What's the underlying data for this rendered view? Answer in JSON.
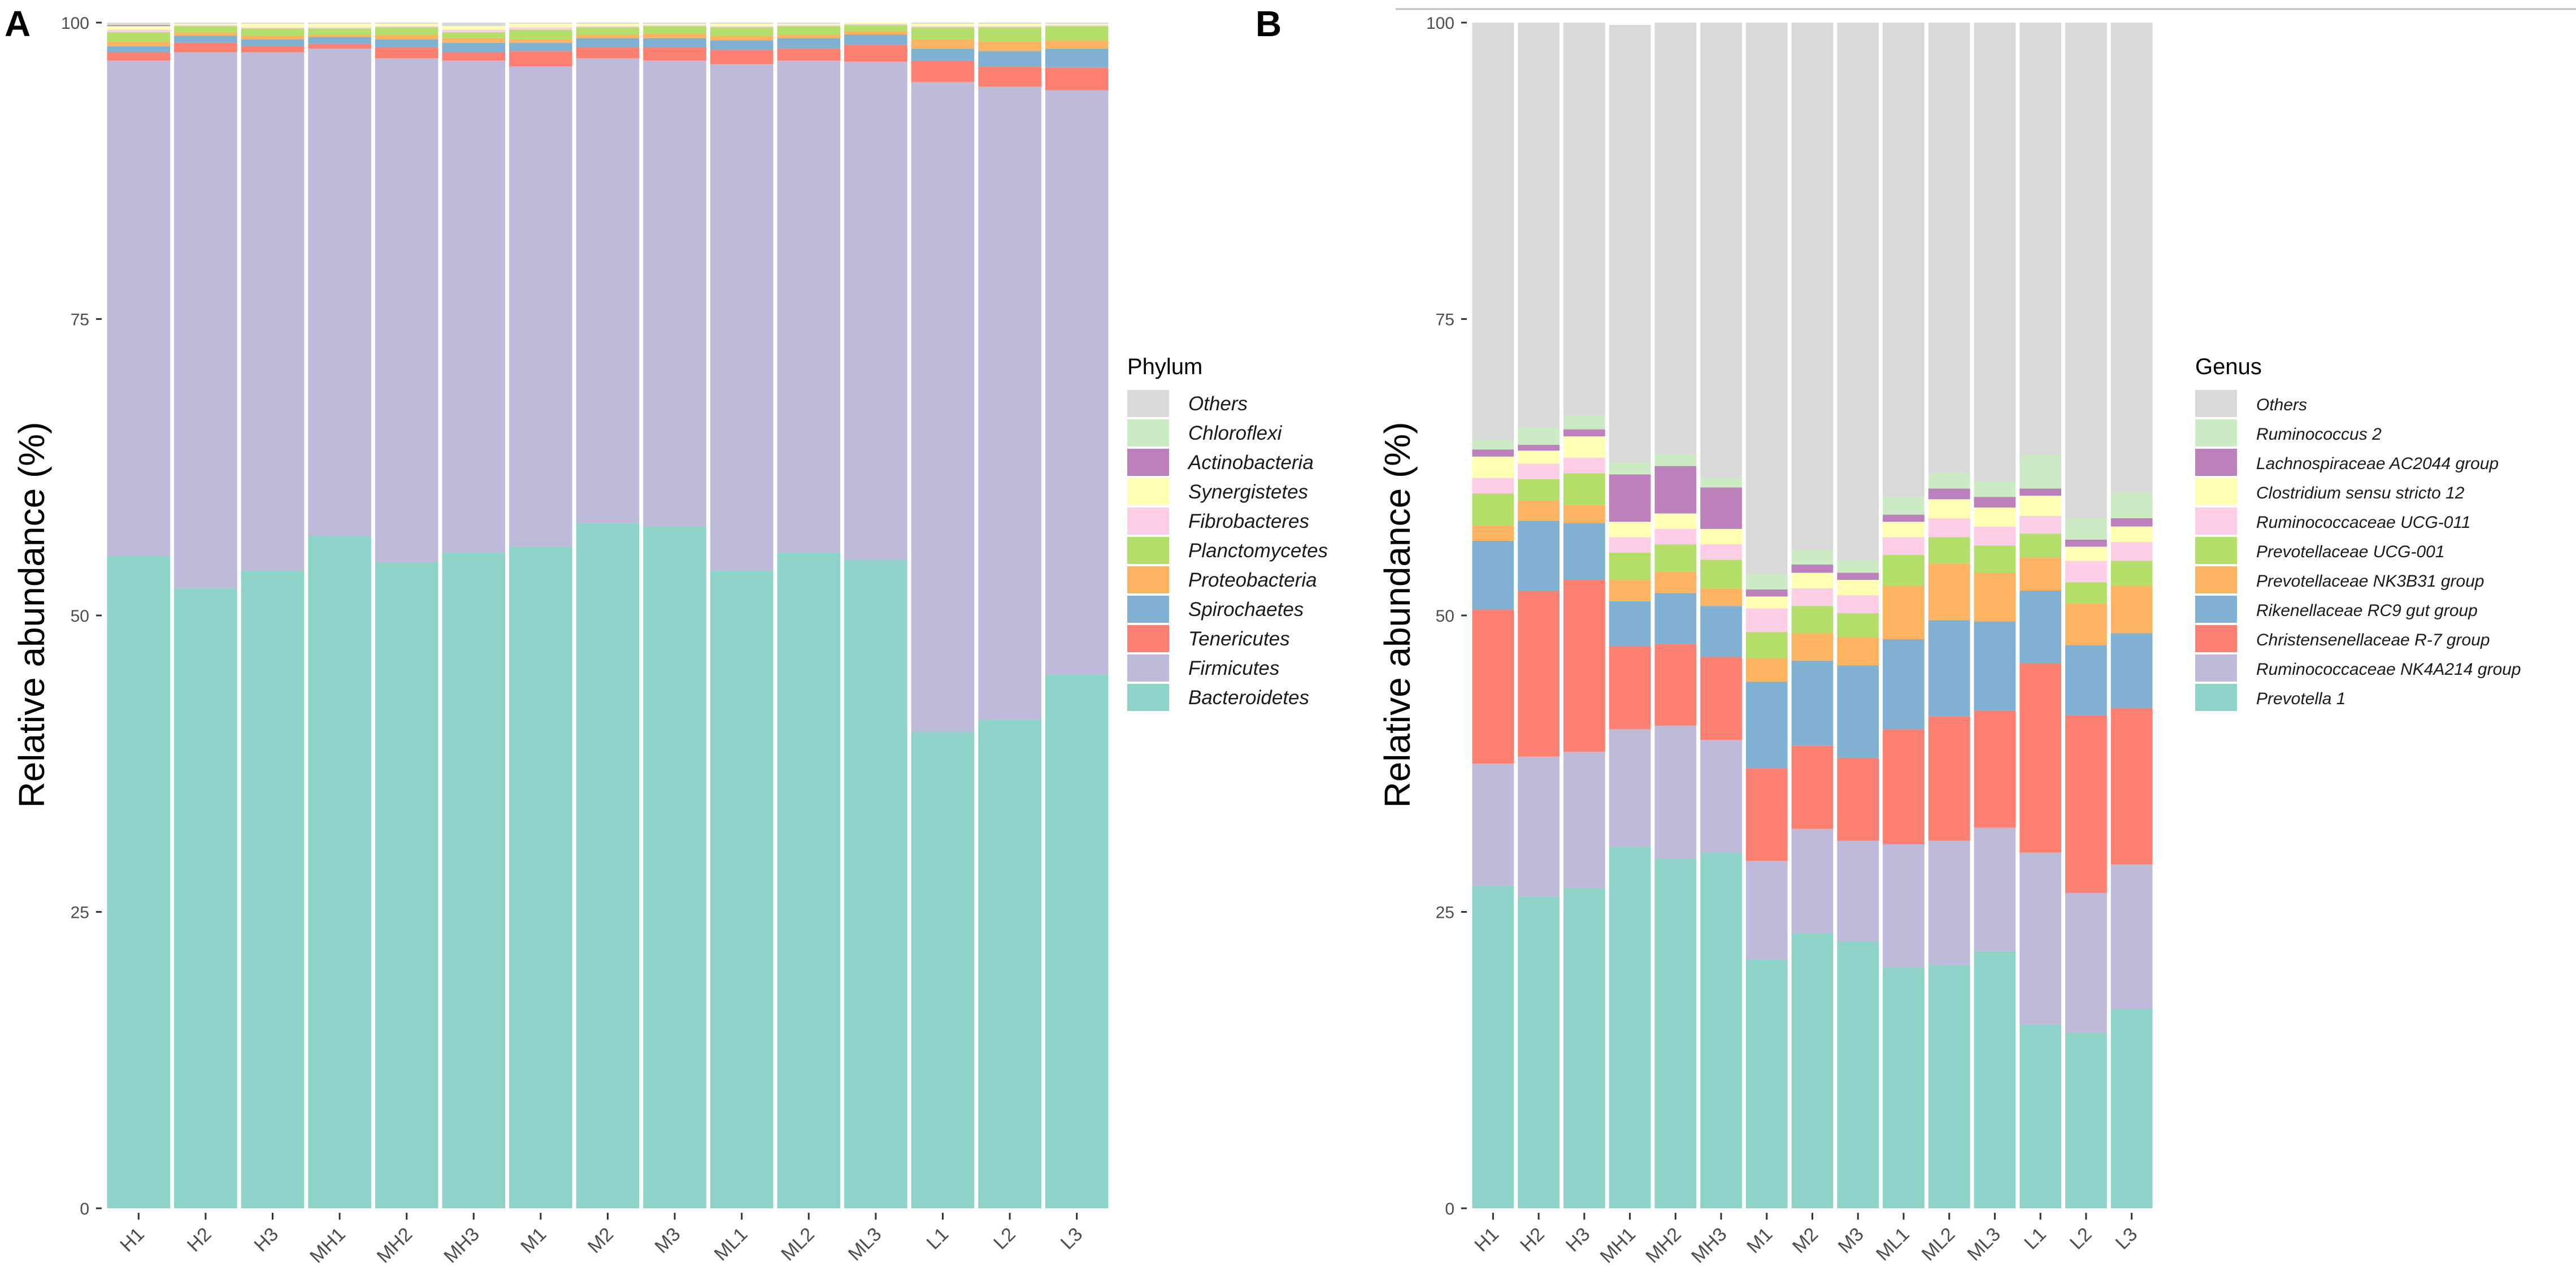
{
  "chart_data": [
    {
      "type": "bar",
      "stacked": true,
      "panel_label": "A",
      "ylabel": "Relative abundance (%)",
      "xlabel": "",
      "ylim": [
        0,
        100
      ],
      "yticks": [
        "0",
        "25",
        "50",
        "75",
        "100"
      ],
      "legend_title": "Phylum",
      "legend_position": "right",
      "categories": [
        "H1",
        "H2",
        "H3",
        "MH1",
        "MH2",
        "MH3",
        "M1",
        "M2",
        "M3",
        "ML1",
        "ML2",
        "ML3",
        "L1",
        "L2",
        "L3"
      ],
      "series": [
        {
          "name": "Bacteroidetes",
          "color": "#8dd3c7",
          "values": [
            55.0,
            52.3,
            53.8,
            56.7,
            54.5,
            55.3,
            55.8,
            57.8,
            57.5,
            53.8,
            55.3,
            54.7,
            40.2,
            41.2,
            45.0
          ]
        },
        {
          "name": "Firmicutes",
          "color": "#bebada",
          "values": [
            41.8,
            45.2,
            43.7,
            41.1,
            42.5,
            41.5,
            40.5,
            39.2,
            39.3,
            42.7,
            41.5,
            42.0,
            54.8,
            53.4,
            49.3
          ]
        },
        {
          "name": "Tenericutes",
          "color": "#fb8072",
          "values": [
            0.7,
            0.8,
            0.5,
            0.4,
            0.9,
            0.7,
            1.3,
            0.9,
            1.1,
            1.2,
            1.0,
            1.4,
            1.8,
            1.7,
            1.9
          ]
        },
        {
          "name": "Spirochaetes",
          "color": "#80b1d3",
          "values": [
            0.5,
            0.6,
            0.6,
            0.6,
            0.7,
            0.8,
            0.7,
            0.8,
            0.8,
            0.8,
            0.9,
            0.9,
            1.0,
            1.3,
            1.6
          ]
        },
        {
          "name": "Proteobacteria",
          "color": "#fdb462",
          "values": [
            0.4,
            0.3,
            0.3,
            0.2,
            0.4,
            0.4,
            0.3,
            0.3,
            0.4,
            0.4,
            0.3,
            0.3,
            0.8,
            0.8,
            0.7
          ]
        },
        {
          "name": "Planctomycetes",
          "color": "#b3de69",
          "values": [
            0.8,
            0.5,
            0.6,
            0.5,
            0.6,
            0.5,
            0.8,
            0.6,
            0.6,
            0.7,
            0.7,
            0.5,
            1.0,
            1.2,
            1.2
          ]
        },
        {
          "name": "Fibrobacteres",
          "color": "#fccde5",
          "values": [
            0.2,
            0.1,
            0.1,
            0.1,
            0.1,
            0.2,
            0.2,
            0.1,
            0.1,
            0.1,
            0.1,
            0.1,
            0.1,
            0.1,
            0.1
          ]
        },
        {
          "name": "Synergistetes",
          "color": "#ffffb3",
          "values": [
            0.3,
            0.1,
            0.3,
            0.3,
            0.2,
            0.3,
            0.3,
            0.2,
            0.1,
            0.2,
            0.1,
            0.1,
            0.2,
            0.2,
            0.1
          ]
        },
        {
          "name": "Actinobacteria",
          "color": "#bc80bd",
          "values": [
            0.1,
            0.0,
            0.0,
            0.0,
            0.0,
            0.0,
            0.0,
            0.0,
            0.0,
            0.0,
            0.0,
            0.0,
            0.0,
            0.0,
            0.0
          ]
        },
        {
          "name": "Chloroflexi",
          "color": "#ccebc5",
          "values": [
            0.1,
            0.0,
            0.0,
            0.0,
            0.0,
            0.0,
            0.0,
            0.0,
            0.0,
            0.0,
            0.0,
            0.0,
            0.0,
            0.0,
            0.0
          ]
        },
        {
          "name": "Others",
          "color": "#d9d9d9",
          "values": [
            0.1,
            0.1,
            0.1,
            0.1,
            0.1,
            0.3,
            0.1,
            0.1,
            0.1,
            0.1,
            0.1,
            0.1,
            0.1,
            0.1,
            0.1
          ]
        }
      ],
      "legend_order": [
        "Others",
        "Chloroflexi",
        "Actinobacteria",
        "Synergistetes",
        "Fibrobacteres",
        "Planctomycetes",
        "Proteobacteria",
        "Spirochaetes",
        "Tenericutes",
        "Firmicutes",
        "Bacteroidetes"
      ]
    },
    {
      "type": "bar",
      "stacked": true,
      "panel_label": "B",
      "ylabel": "Relative abundance (%)",
      "xlabel": "",
      "ylim": [
        0,
        100
      ],
      "yticks": [
        "0",
        "25",
        "50",
        "75",
        "100"
      ],
      "legend_title": "Genus",
      "legend_position": "right",
      "categories": [
        "H1",
        "H2",
        "H3",
        "MH1",
        "MH2",
        "MH3",
        "M1",
        "M2",
        "M3",
        "ML1",
        "ML2",
        "ML3",
        "L1",
        "L2",
        "L3"
      ],
      "series": [
        {
          "name": "Prevotella 1",
          "color": "#8dd3c7",
          "values": [
            27.2,
            26.3,
            27.0,
            30.5,
            29.5,
            30.0,
            21.0,
            23.2,
            22.5,
            20.3,
            20.5,
            21.7,
            15.5,
            14.8,
            16.8
          ]
        },
        {
          "name": "Ruminococcaceae NK4A214 group",
          "color": "#bebada",
          "values": [
            10.3,
            11.8,
            11.5,
            9.9,
            11.2,
            9.5,
            8.3,
            8.8,
            8.5,
            10.4,
            10.5,
            10.4,
            14.5,
            11.8,
            12.2
          ]
        },
        {
          "name": "Christensenellaceae R-7 group",
          "color": "#fb8072",
          "values": [
            13.0,
            14.0,
            14.5,
            7.0,
            6.9,
            7.0,
            7.8,
            7.0,
            7.0,
            9.7,
            10.5,
            9.9,
            16.0,
            15.0,
            13.2
          ]
        },
        {
          "name": "Rikenellaceae RC9 gut group",
          "color": "#80b1d3",
          "values": [
            5.8,
            5.9,
            4.8,
            3.8,
            4.3,
            4.3,
            7.3,
            7.2,
            7.8,
            7.6,
            8.1,
            7.5,
            6.1,
            5.9,
            6.3
          ]
        },
        {
          "name": "Prevotellaceae NK3B31 group",
          "color": "#fdb462",
          "values": [
            1.3,
            1.7,
            1.5,
            1.8,
            1.8,
            1.5,
            2.0,
            2.3,
            2.4,
            4.5,
            4.8,
            4.1,
            2.8,
            3.5,
            4.0
          ]
        },
        {
          "name": "Prevotellaceae UCG-001",
          "color": "#b3de69",
          "values": [
            2.7,
            1.8,
            2.7,
            2.3,
            2.3,
            2.4,
            2.2,
            2.3,
            2.0,
            2.6,
            2.2,
            2.3,
            2.0,
            1.8,
            2.1
          ]
        },
        {
          "name": "Ruminococcaceae UCG-011",
          "color": "#fccde5",
          "values": [
            1.3,
            1.3,
            1.3,
            1.3,
            1.3,
            1.3,
            2.0,
            1.5,
            1.5,
            1.5,
            1.6,
            1.6,
            1.5,
            1.8,
            1.6
          ]
        },
        {
          "name": "Clostridium sensu stricto 12",
          "color": "#ffffb3",
          "values": [
            1.8,
            1.1,
            1.8,
            1.3,
            1.3,
            1.3,
            1.0,
            1.3,
            1.3,
            1.3,
            1.6,
            1.6,
            1.7,
            1.2,
            1.3
          ]
        },
        {
          "name": "Lachnospiraceae AC2044 group",
          "color": "#bc80bd",
          "values": [
            0.6,
            0.5,
            0.6,
            4.0,
            4.0,
            3.5,
            0.6,
            0.7,
            0.6,
            0.6,
            0.9,
            0.9,
            0.6,
            0.6,
            0.7
          ]
        },
        {
          "name": "Ruminococcus 2",
          "color": "#ccebc5",
          "values": [
            0.8,
            1.5,
            1.2,
            1.0,
            1.0,
            0.8,
            1.3,
            1.2,
            1.0,
            1.5,
            1.3,
            1.3,
            2.8,
            1.8,
            2.2
          ]
        },
        {
          "name": "Others",
          "color": "#d9d9d9",
          "values": [
            35.2,
            34.1,
            33.1,
            36.9,
            36.4,
            38.4,
            46.5,
            44.5,
            45.4,
            40.0,
            38.0,
            38.9,
            36.5,
            41.8,
            39.6
          ]
        }
      ],
      "legend_order": [
        "Others",
        "Ruminococcus 2",
        "Lachnospiraceae AC2044 group",
        "Clostridium sensu stricto 12",
        "Ruminococcaceae UCG-011",
        "Prevotellaceae UCG-001",
        "Prevotellaceae NK3B31 group",
        "Rikenellaceae RC9 gut group",
        "Christensenellaceae R-7 group",
        "Ruminococcaceae NK4A214 group",
        "Prevotella 1"
      ]
    }
  ]
}
